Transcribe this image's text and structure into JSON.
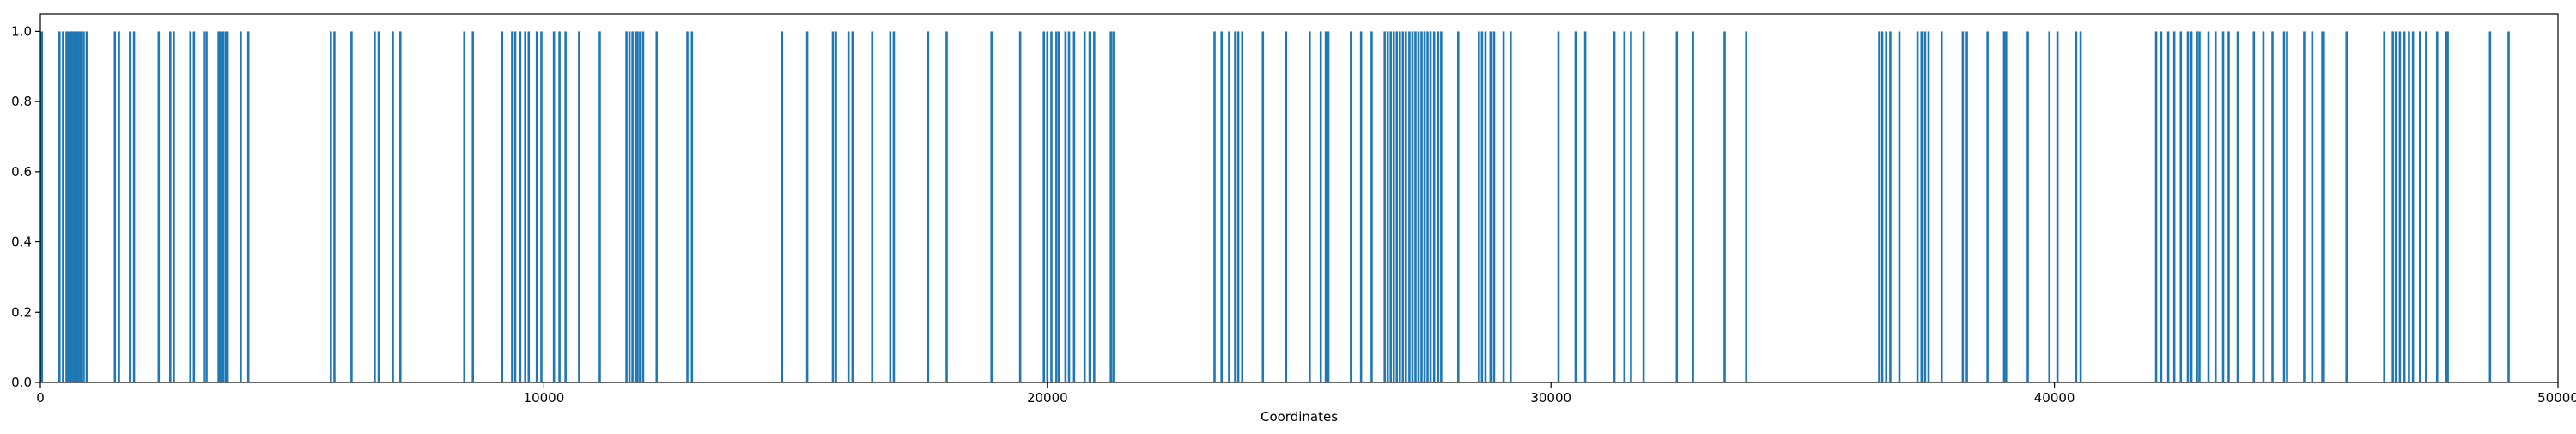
{
  "chart_data": {
    "type": "bar",
    "title": "",
    "xlabel": "Coordinates",
    "ylabel": "",
    "xlim": [
      0,
      50000
    ],
    "ylim": [
      0,
      1.05
    ],
    "grid": false,
    "bar_color": "#1f77b4",
    "bar_value": 1.0,
    "x_ticks": [
      0,
      10000,
      20000,
      30000,
      40000,
      50000
    ],
    "x_tick_labels": [
      "0",
      "10000",
      "20000",
      "30000",
      "40000",
      "50000"
    ],
    "y_ticks": [
      0.0,
      0.2,
      0.4,
      0.6,
      0.8,
      1.0
    ],
    "y_tick_labels": [
      "0.0",
      "0.2",
      "0.4",
      "0.6",
      "0.8",
      "1.0"
    ],
    "x": [
      30,
      380,
      450,
      520,
      560,
      600,
      640,
      680,
      720,
      760,
      800,
      860,
      920,
      1480,
      1560,
      1780,
      1860,
      2350,
      2580,
      2650,
      2980,
      3050,
      3250,
      3300,
      3540,
      3580,
      3630,
      3680,
      3720,
      3980,
      4130,
      5770,
      5840,
      6180,
      6640,
      6720,
      7000,
      7150,
      8420,
      8590,
      9170,
      9370,
      9430,
      9530,
      9630,
      9700,
      9860,
      9950,
      10200,
      10310,
      10430,
      10700,
      11110,
      11640,
      11700,
      11760,
      11820,
      11860,
      11910,
      11970,
      12240,
      12850,
      12940,
      14730,
      15230,
      15740,
      15800,
      16050,
      16130,
      16520,
      16880,
      16950,
      17630,
      18000,
      18890,
      19460,
      19930,
      20000,
      20080,
      20180,
      20230,
      20360,
      20430,
      20530,
      20740,
      20840,
      20930,
      21260,
      21310,
      23320,
      23460,
      23610,
      23730,
      23790,
      23870,
      24280,
      24740,
      25210,
      25430,
      25530,
      25580,
      26030,
      26230,
      26440,
      26700,
      26760,
      26820,
      26880,
      26940,
      27000,
      27060,
      27120,
      27190,
      27250,
      27310,
      27370,
      27430,
      27490,
      27550,
      27610,
      27680,
      27760,
      27820,
      28160,
      28570,
      28630,
      28700,
      28800,
      28870,
      29060,
      29200,
      30150,
      30490,
      30680,
      31260,
      31460,
      31590,
      31840,
      32500,
      32820,
      33450,
      33880,
      36520,
      36580,
      36660,
      36740,
      36920,
      37280,
      37360,
      37430,
      37500,
      37760,
      38180,
      38260,
      38670,
      39000,
      39040,
      39470,
      39900,
      40060,
      40430,
      40520,
      42020,
      42120,
      42260,
      42380,
      42510,
      42650,
      42720,
      42830,
      42880,
      43060,
      43200,
      43350,
      43460,
      43640,
      43960,
      44150,
      44330,
      44560,
      44620,
      44960,
      45120,
      45320,
      45350,
      45800,
      46550,
      46720,
      46780,
      46860,
      46950,
      47040,
      47120,
      47260,
      47380,
      47600,
      47780,
      47810,
      48650,
      49020
    ]
  }
}
